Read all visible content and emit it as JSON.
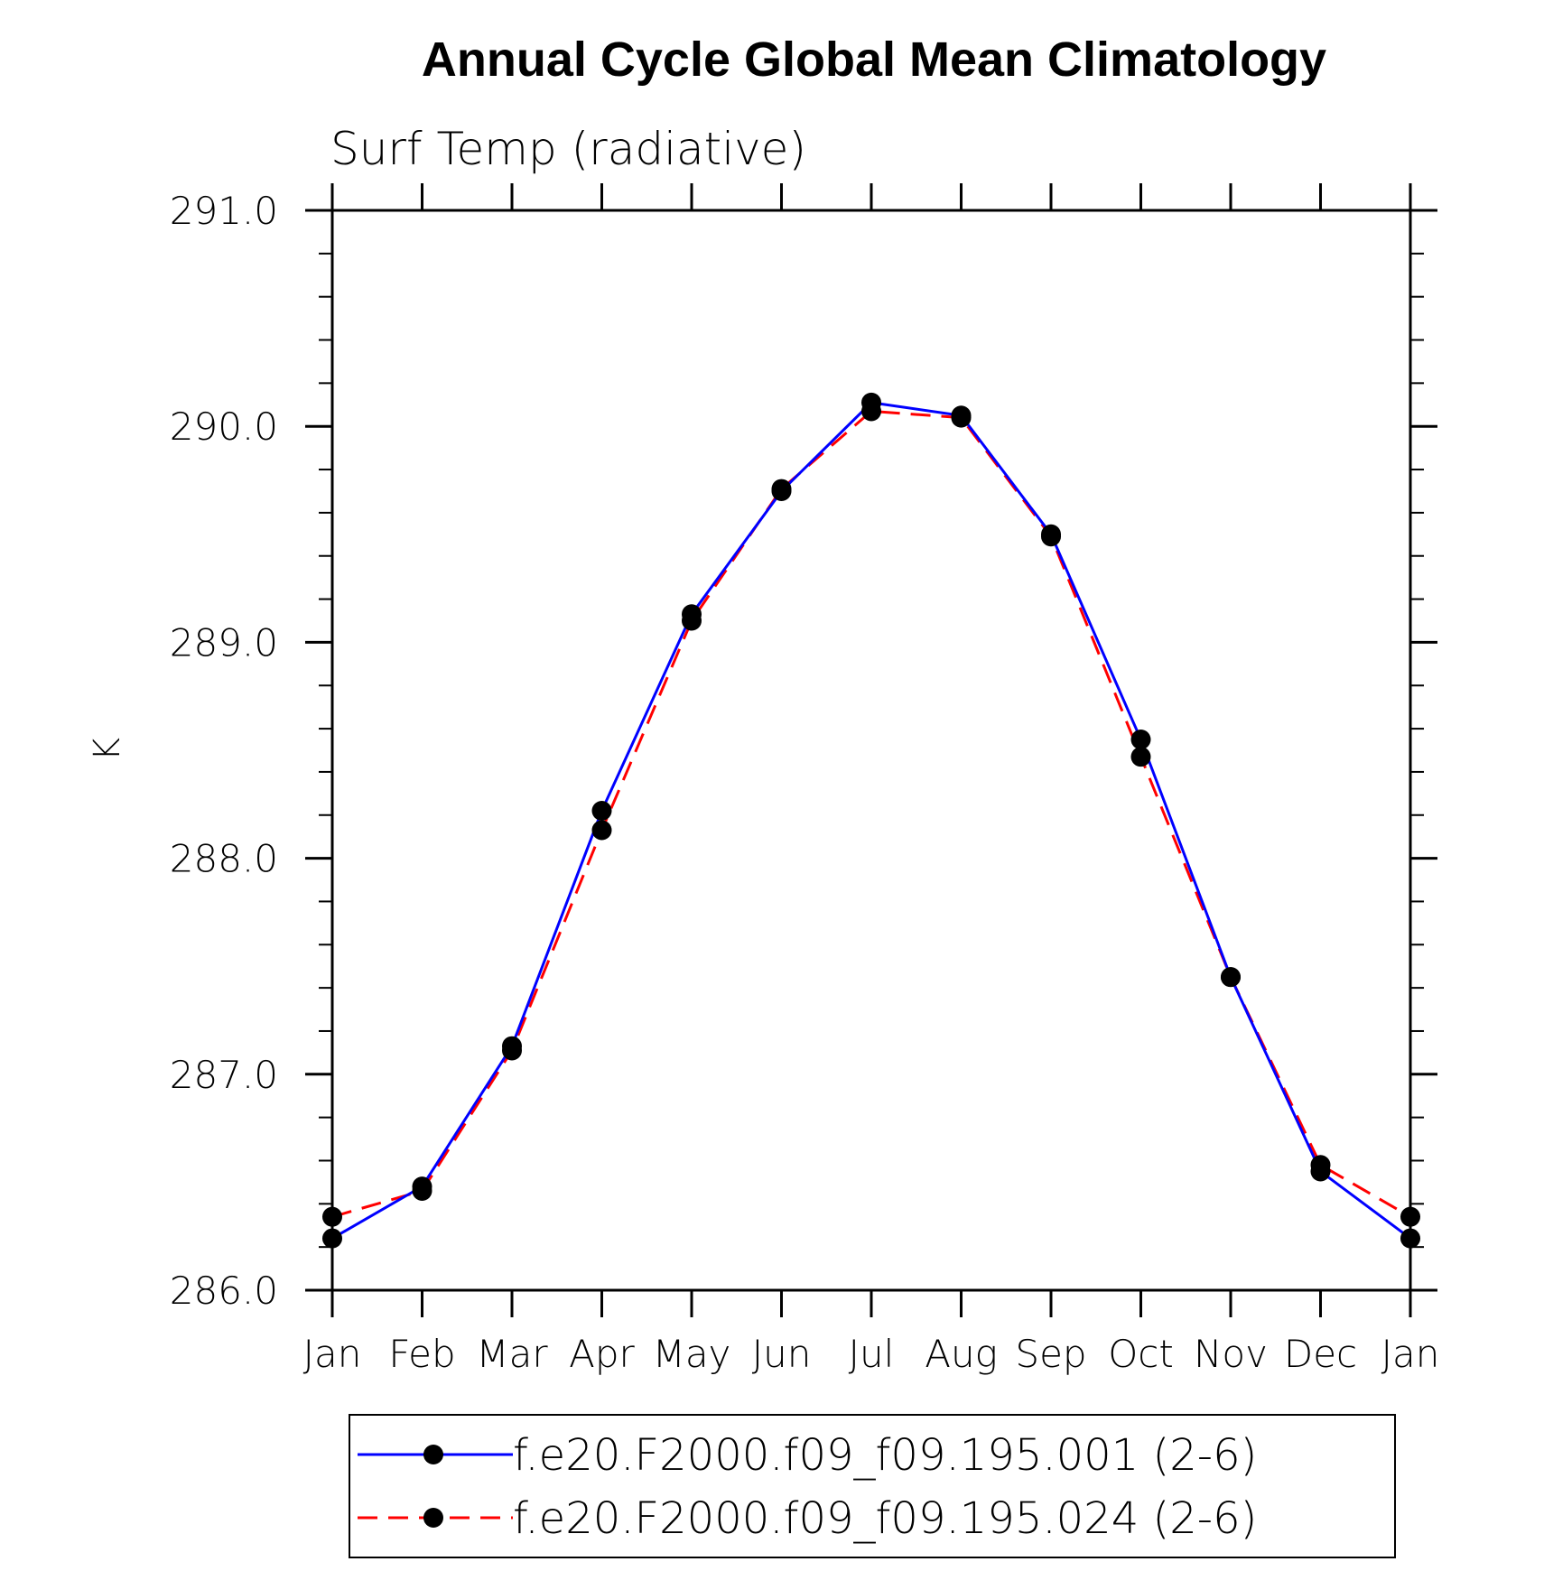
{
  "chart_data": {
    "type": "line",
    "title": "Annual Cycle Global Mean Climatology",
    "subtitle": "Surf Temp (radiative)",
    "ylabel": "K",
    "xlabel": "",
    "categories": [
      "Jan",
      "Feb",
      "Mar",
      "Apr",
      "May",
      "Jun",
      "Jul",
      "Aug",
      "Sep",
      "Oct",
      "Nov",
      "Dec",
      "Jan"
    ],
    "ylim": [
      286.0,
      291.0
    ],
    "yticks": [
      "286.0",
      "287.0",
      "288.0",
      "289.0",
      "290.0",
      "291.0"
    ],
    "yminor_step": 0.2,
    "series": [
      {
        "name": "f.e20.F2000.f09_f09.195.001 (2-6)",
        "color": "#0000ff",
        "style": "solid",
        "values": [
          286.24,
          286.48,
          287.13,
          288.22,
          289.13,
          289.7,
          290.11,
          290.05,
          289.5,
          288.55,
          287.45,
          286.55,
          286.24
        ]
      },
      {
        "name": "f.e20.F2000.f09_f09.195.024 (2-6)",
        "color": "#ff0000",
        "style": "dashed",
        "values": [
          286.34,
          286.46,
          287.11,
          288.13,
          289.1,
          289.71,
          290.07,
          290.04,
          289.49,
          288.47,
          287.45,
          286.58,
          286.34
        ]
      }
    ],
    "legend_position": "bottom",
    "grid": false
  }
}
